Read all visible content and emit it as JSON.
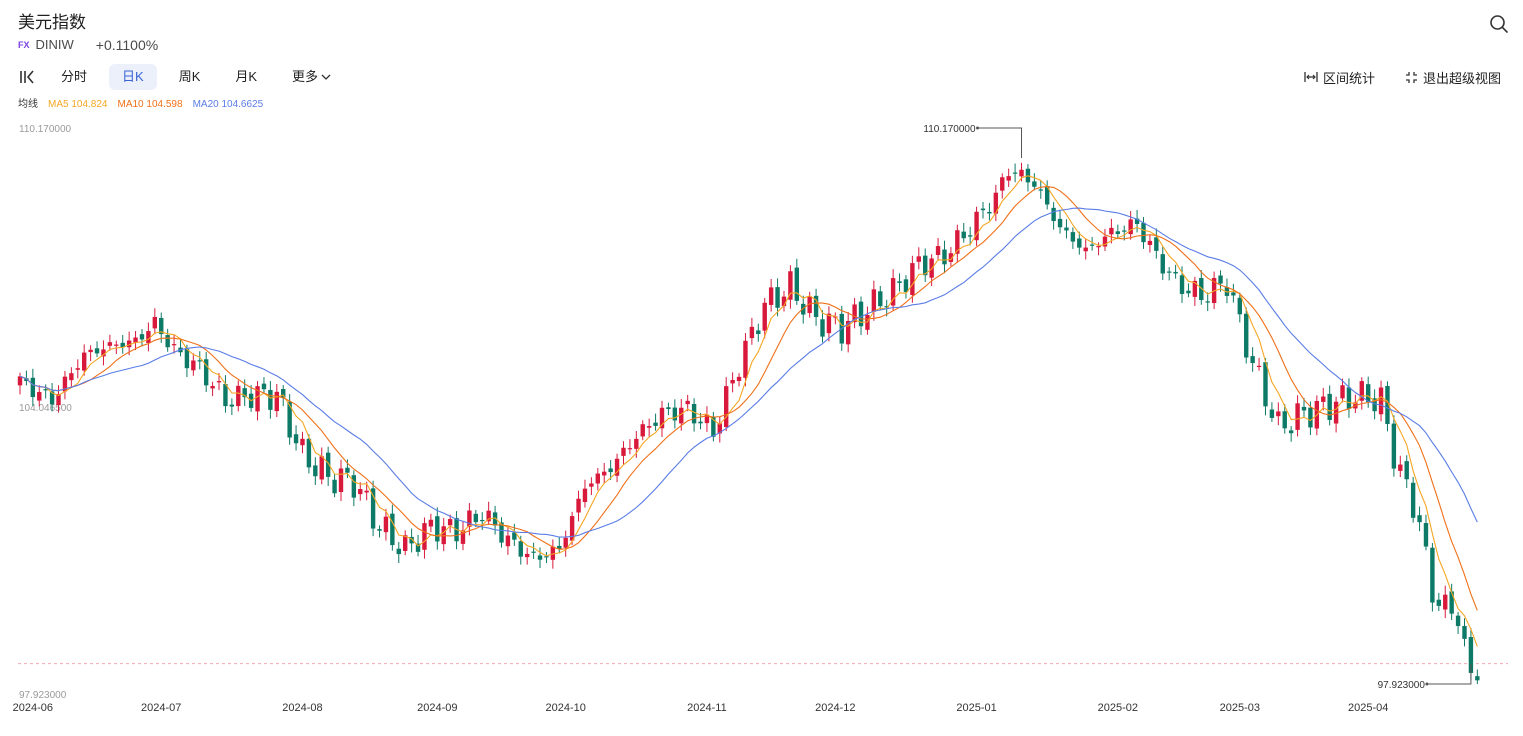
{
  "header": {
    "title": "美元指数",
    "badge": "FX",
    "code": "DINIW",
    "change": "+0.1100%"
  },
  "toolbar": {
    "tabs": [
      {
        "label": "分时",
        "active": false
      },
      {
        "label": "日K",
        "active": true
      },
      {
        "label": "周K",
        "active": false
      },
      {
        "label": "月K",
        "active": false
      }
    ],
    "more_label": "更多",
    "range_stats_label": "区间统计",
    "exit_fullscreen_label": "退出超级视图"
  },
  "ma_legend": {
    "label": "均线",
    "ma5": "MA5 104.824",
    "ma10": "MA10 104.598",
    "ma20": "MA20 104.6625"
  },
  "colors": {
    "up": "#d8193b",
    "down": "#0c7a66",
    "ma5": "#f5a623",
    "ma10": "#f07019",
    "ma20": "#5a7de6",
    "tab_active_bg": "#ebf0fb",
    "tab_active_text": "#3a63d4"
  },
  "chart_data": {
    "type": "candlestick",
    "y_axis_labels": [
      "110.170000",
      "104.046500",
      "97.923000"
    ],
    "ylim": [
      97.923,
      110.17
    ],
    "max_annotation": "110.170000",
    "min_annotation": "97.923000",
    "x_ticks": [
      "2024-06",
      "2024-07",
      "2024-08",
      "2024-09",
      "2024-10",
      "2024-11",
      "2024-12",
      "2025-01",
      "2025-02",
      "2025-03",
      "2025-04"
    ],
    "x_tick_index": [
      2,
      22,
      44,
      65,
      85,
      107,
      127,
      149,
      171,
      190,
      210
    ],
    "close_anchors": [
      [
        0,
        104.6
      ],
      [
        5,
        104.2
      ],
      [
        10,
        105.2
      ],
      [
        14,
        105.4
      ],
      [
        18,
        105.5
      ],
      [
        21,
        105.9
      ],
      [
        24,
        105.3
      ],
      [
        28,
        104.9
      ],
      [
        32,
        104.2
      ],
      [
        36,
        104.3
      ],
      [
        40,
        104.3
      ],
      [
        44,
        103.0
      ],
      [
        48,
        102.5
      ],
      [
        52,
        102.4
      ],
      [
        56,
        101.4
      ],
      [
        60,
        100.9
      ],
      [
        64,
        101.4
      ],
      [
        68,
        101.3
      ],
      [
        72,
        101.7
      ],
      [
        76,
        101.1
      ],
      [
        80,
        100.7
      ],
      [
        84,
        100.9
      ],
      [
        88,
        102.3
      ],
      [
        92,
        102.7
      ],
      [
        96,
        103.4
      ],
      [
        100,
        103.9
      ],
      [
        104,
        104.0
      ],
      [
        108,
        103.5
      ],
      [
        112,
        105.0
      ],
      [
        116,
        106.3
      ],
      [
        120,
        106.7
      ],
      [
        124,
        106.0
      ],
      [
        128,
        105.8
      ],
      [
        132,
        106.2
      ],
      [
        136,
        106.6
      ],
      [
        140,
        107.2
      ],
      [
        144,
        107.4
      ],
      [
        148,
        108.0
      ],
      [
        152,
        108.7
      ],
      [
        154,
        109.3
      ],
      [
        158,
        109.0
      ],
      [
        162,
        108.0
      ],
      [
        166,
        107.5
      ],
      [
        170,
        107.9
      ],
      [
        174,
        108.1
      ],
      [
        176,
        107.6
      ],
      [
        180,
        106.8
      ],
      [
        184,
        106.5
      ],
      [
        188,
        106.8
      ],
      [
        192,
        105.0
      ],
      [
        196,
        103.6
      ],
      [
        200,
        103.9
      ],
      [
        204,
        104.1
      ],
      [
        208,
        104.3
      ],
      [
        212,
        104.2
      ],
      [
        214,
        103.0
      ],
      [
        218,
        101.5
      ],
      [
        220,
        99.9
      ],
      [
        224,
        99.4
      ],
      [
        226,
        98.1
      ],
      [
        227,
        98.2
      ]
    ],
    "ma_series": [
      "MA5",
      "MA10",
      "MA20"
    ]
  }
}
